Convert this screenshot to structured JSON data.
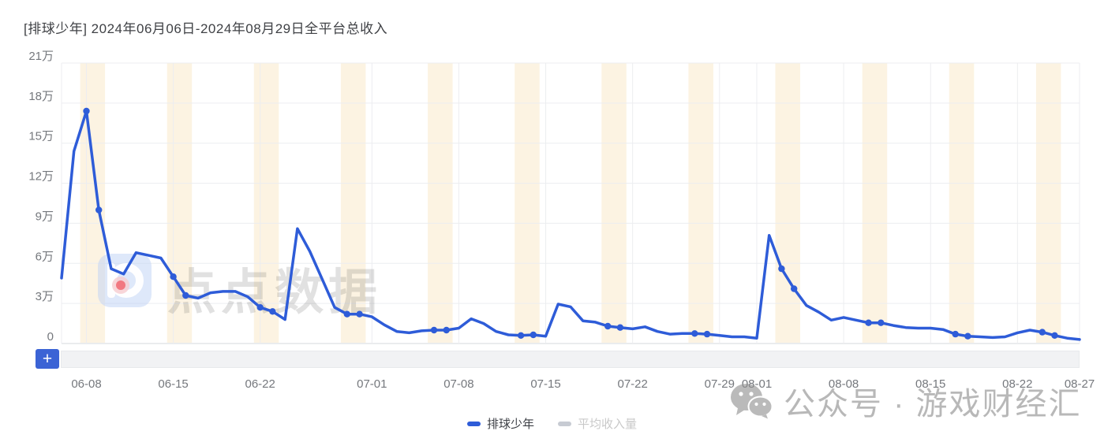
{
  "title": "[排球少年]  2024年06月06日-2024年08月29日全平台总收入",
  "toolbar": {
    "zoom_button_label": "+"
  },
  "watermarks": {
    "logo_text": "点点数据",
    "brand": "公众号 · 游戏财经汇"
  },
  "legend": [
    {
      "label": "排球少年",
      "active": true
    },
    {
      "label": "平均收入量",
      "active": false
    }
  ],
  "colors": {
    "line": "#2e5cd8",
    "weekend_band": "#fcf3e2",
    "grid": "#ecedf0",
    "axis": "#d6d9de",
    "tick_text": "#75787d",
    "legend_inactive": "#c7cbd3",
    "zoom_button": "#3b63d5"
  },
  "chart_data": {
    "type": "line",
    "title": "[排球少年] 2024年06月06日-2024年08月29日全平台总收入",
    "unit": "万",
    "ylim": [
      0,
      21
    ],
    "grid": true,
    "legend_position": "bottom",
    "y_ticks": [
      {
        "label": "21万",
        "value": 21
      },
      {
        "label": "18万",
        "value": 18
      },
      {
        "label": "15万",
        "value": 15
      },
      {
        "label": "12万",
        "value": 12
      },
      {
        "label": "9万",
        "value": 9
      },
      {
        "label": "6万",
        "value": 6
      },
      {
        "label": "3万",
        "value": 3
      },
      {
        "label": "0",
        "value": 0
      }
    ],
    "x_ticks": [
      {
        "label": "06-08",
        "index": 2
      },
      {
        "label": "06-15",
        "index": 9
      },
      {
        "label": "06-22",
        "index": 16
      },
      {
        "label": "07-01",
        "index": 25
      },
      {
        "label": "07-08",
        "index": 32
      },
      {
        "label": "07-15",
        "index": 39
      },
      {
        "label": "07-22",
        "index": 46
      },
      {
        "label": "07-29",
        "index": 53
      },
      {
        "label": "08-01",
        "index": 56
      },
      {
        "label": "08-08",
        "index": 63
      },
      {
        "label": "08-15",
        "index": 70
      },
      {
        "label": "08-22",
        "index": 77
      },
      {
        "label": "08-27",
        "index": 82
      }
    ],
    "x": [
      "06-06",
      "06-07",
      "06-08",
      "06-09",
      "06-10",
      "06-11",
      "06-12",
      "06-13",
      "06-14",
      "06-15",
      "06-16",
      "06-17",
      "06-18",
      "06-19",
      "06-20",
      "06-21",
      "06-22",
      "06-23",
      "06-24",
      "06-25",
      "06-26",
      "06-27",
      "06-28",
      "06-29",
      "06-30",
      "07-01",
      "07-02",
      "07-03",
      "07-04",
      "07-05",
      "07-06",
      "07-07",
      "07-08",
      "07-09",
      "07-10",
      "07-11",
      "07-12",
      "07-13",
      "07-14",
      "07-15",
      "07-16",
      "07-17",
      "07-18",
      "07-19",
      "07-20",
      "07-21",
      "07-22",
      "07-23",
      "07-24",
      "07-25",
      "07-26",
      "07-27",
      "07-28",
      "07-29",
      "07-30",
      "07-31",
      "08-01",
      "08-02",
      "08-03",
      "08-04",
      "08-05",
      "08-06",
      "08-07",
      "08-08",
      "08-09",
      "08-10",
      "08-11",
      "08-12",
      "08-13",
      "08-14",
      "08-15",
      "08-16",
      "08-17",
      "08-18",
      "08-19",
      "08-20",
      "08-21",
      "08-22",
      "08-23",
      "08-24",
      "08-25",
      "08-26",
      "08-27"
    ],
    "series": [
      {
        "name": "排球少年",
        "color": "#2e5cd8",
        "values": [
          4.9,
          14.4,
          17.4,
          10.0,
          5.6,
          5.2,
          6.8,
          6.6,
          6.4,
          5.0,
          3.6,
          3.4,
          3.8,
          3.9,
          3.9,
          3.5,
          2.7,
          2.4,
          1.8,
          8.6,
          6.9,
          4.8,
          2.7,
          2.2,
          2.2,
          2.0,
          1.4,
          0.9,
          0.8,
          0.95,
          1.0,
          1.0,
          1.15,
          1.85,
          1.5,
          0.9,
          0.65,
          0.6,
          0.65,
          0.55,
          2.95,
          2.75,
          1.7,
          1.6,
          1.3,
          1.2,
          1.1,
          1.25,
          0.9,
          0.7,
          0.75,
          0.75,
          0.7,
          0.6,
          0.5,
          0.5,
          0.4,
          8.1,
          5.6,
          4.1,
          2.85,
          2.35,
          1.75,
          1.95,
          1.75,
          1.55,
          1.55,
          1.35,
          1.2,
          1.15,
          1.15,
          1.05,
          0.7,
          0.55,
          0.5,
          0.45,
          0.5,
          0.8,
          1.0,
          0.85,
          0.6,
          0.4,
          0.3
        ]
      },
      {
        "name": "平均收入量",
        "color": "#c7cbd3",
        "visible": false
      }
    ],
    "weekend_bands_note": "Saturday+Sunday columns shaded",
    "first_saturday_index": 2
  }
}
